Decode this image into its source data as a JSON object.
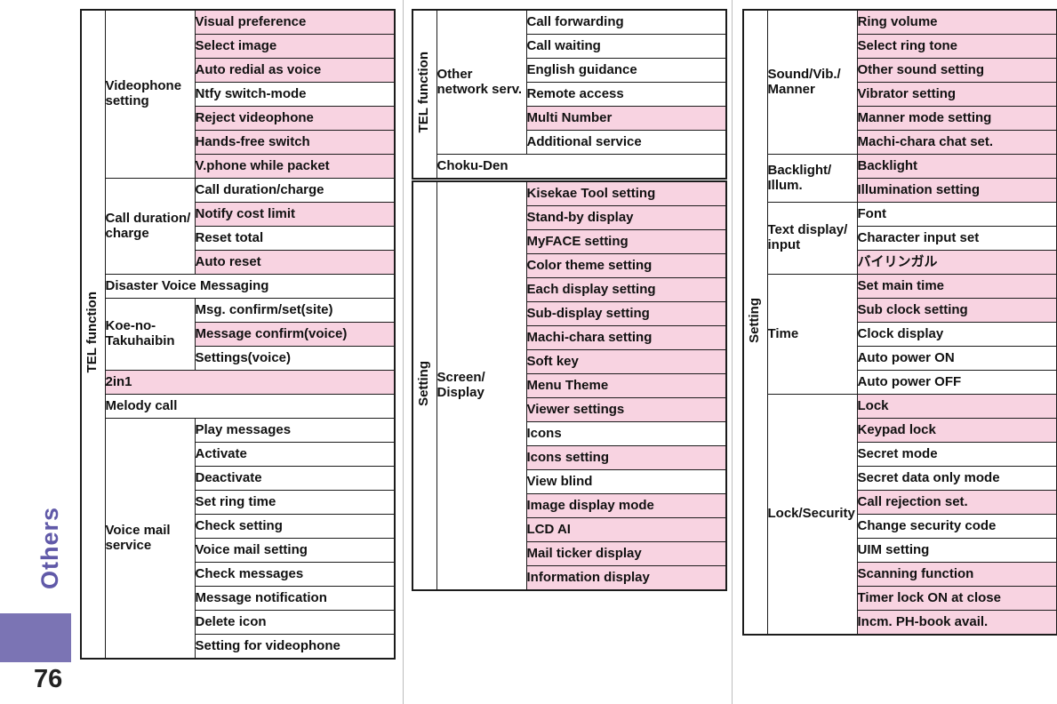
{
  "page": {
    "side_tab": "Others",
    "page_number": "76"
  },
  "colors": {
    "highlight_pink": "#f8d3e1",
    "border_dark": "#1c1c1c",
    "divider_gray": "#bdbdbd",
    "tab_block_purple": "#7b74b4",
    "tab_text_purple": "#6059a8"
  },
  "tables": [
    {
      "category": "TEL function",
      "sections": [
        {
          "group": "Videophone setting",
          "items": [
            {
              "label": "Visual preference",
              "highlight": true
            },
            {
              "label": "Select image",
              "highlight": true
            },
            {
              "label": "Auto redial as voice",
              "highlight": true
            },
            {
              "label": "Ntfy switch-mode",
              "highlight": false
            },
            {
              "label": "Reject videophone",
              "highlight": true
            },
            {
              "label": "Hands-free switch",
              "highlight": true
            },
            {
              "label": "V.phone while packet",
              "highlight": true
            }
          ]
        },
        {
          "group": "Call duration/charge",
          "items": [
            {
              "label": "Call duration/charge",
              "highlight": false
            },
            {
              "label": "Notify cost limit",
              "highlight": true
            },
            {
              "label": "Reset total",
              "highlight": false
            },
            {
              "label": "Auto reset",
              "highlight": true
            }
          ]
        },
        {
          "label": "Disaster Voice Messaging",
          "highlight": false
        },
        {
          "group": "Koe-no-Takuhaibin",
          "items": [
            {
              "label": "Msg. confirm/set(site)",
              "highlight": false
            },
            {
              "label": "Message confirm(voice)",
              "highlight": true
            },
            {
              "label": "Settings(voice)",
              "highlight": false
            }
          ]
        },
        {
          "label": "2in1",
          "highlight": true
        },
        {
          "label": "Melody call",
          "highlight": false
        },
        {
          "group": "Voice mail service",
          "items": [
            {
              "label": "Play messages",
              "highlight": false
            },
            {
              "label": "Activate",
              "highlight": false
            },
            {
              "label": "Deactivate",
              "highlight": false
            },
            {
              "label": "Set ring time",
              "highlight": false
            },
            {
              "label": "Check setting",
              "highlight": false
            },
            {
              "label": "Voice mail setting",
              "highlight": false
            },
            {
              "label": "Check messages",
              "highlight": false
            },
            {
              "label": "Message notification",
              "highlight": false
            },
            {
              "label": "Delete icon",
              "highlight": false
            },
            {
              "label": "Setting for videophone",
              "highlight": false
            }
          ]
        }
      ]
    },
    {
      "category": "TEL function",
      "sections": [
        {
          "group": "Other network serv.",
          "items": [
            {
              "label": "Call forwarding",
              "highlight": false
            },
            {
              "label": "Call waiting",
              "highlight": false
            },
            {
              "label": "English guidance",
              "highlight": false
            },
            {
              "label": "Remote access",
              "highlight": false
            },
            {
              "label": "Multi Number",
              "highlight": true
            },
            {
              "label": "Additional service",
              "highlight": false
            }
          ]
        },
        {
          "label": "Choku-Den",
          "highlight": false
        }
      ]
    },
    {
      "category": "Setting",
      "sections": [
        {
          "group": "Screen/Display",
          "items": [
            {
              "label": "Kisekae Tool setting",
              "highlight": true
            },
            {
              "label": "Stand-by display",
              "highlight": true
            },
            {
              "label": "MyFACE setting",
              "highlight": true
            },
            {
              "label": "Color theme setting",
              "highlight": true
            },
            {
              "label": "Each display setting",
              "highlight": true
            },
            {
              "label": "Sub-display setting",
              "highlight": true
            },
            {
              "label": "Machi-chara setting",
              "highlight": true
            },
            {
              "label": "Soft key",
              "highlight": true
            },
            {
              "label": "Menu Theme",
              "highlight": true
            },
            {
              "label": "Viewer settings",
              "highlight": true
            },
            {
              "label": "Icons",
              "highlight": false
            },
            {
              "label": "Icons setting",
              "highlight": true
            },
            {
              "label": "View blind",
              "highlight": false
            },
            {
              "label": "Image display mode",
              "highlight": true
            },
            {
              "label": "LCD AI",
              "highlight": true
            },
            {
              "label": "Mail ticker display",
              "highlight": true
            },
            {
              "label": "Information display",
              "highlight": true
            }
          ]
        }
      ]
    },
    {
      "category": "Setting",
      "sections": [
        {
          "group": "Sound/Vib./Manner",
          "items": [
            {
              "label": "Ring volume",
              "highlight": true
            },
            {
              "label": "Select ring tone",
              "highlight": true
            },
            {
              "label": "Other sound setting",
              "highlight": true
            },
            {
              "label": "Vibrator setting",
              "highlight": true
            },
            {
              "label": "Manner mode setting",
              "highlight": true
            },
            {
              "label": "Machi-chara chat set.",
              "highlight": true
            }
          ]
        },
        {
          "group": "Backlight/Illum.",
          "items": [
            {
              "label": "Backlight",
              "highlight": true
            },
            {
              "label": "Illumination setting",
              "highlight": true
            }
          ]
        },
        {
          "group": "Text display/input",
          "items": [
            {
              "label": "Font",
              "highlight": false
            },
            {
              "label": "Character input set",
              "highlight": false
            },
            {
              "label": "バイリンガル",
              "highlight": true
            }
          ]
        },
        {
          "group": "Time",
          "items": [
            {
              "label": "Set main time",
              "highlight": true
            },
            {
              "label": "Sub clock setting",
              "highlight": true
            },
            {
              "label": "Clock display",
              "highlight": false
            },
            {
              "label": "Auto power ON",
              "highlight": false
            },
            {
              "label": "Auto power OFF",
              "highlight": false
            }
          ]
        },
        {
          "group": "Lock/Security",
          "items": [
            {
              "label": "Lock",
              "highlight": true
            },
            {
              "label": "Keypad lock",
              "highlight": true
            },
            {
              "label": "Secret mode",
              "highlight": false
            },
            {
              "label": "Secret data only mode",
              "highlight": false
            },
            {
              "label": "Call rejection set.",
              "highlight": true
            },
            {
              "label": "Change security code",
              "highlight": false
            },
            {
              "label": "UIM setting",
              "highlight": false
            },
            {
              "label": "Scanning function",
              "highlight": true
            },
            {
              "label": "Timer lock ON at close",
              "highlight": true
            },
            {
              "label": "Incm. PH-book avail.",
              "highlight": true
            }
          ]
        }
      ]
    }
  ]
}
